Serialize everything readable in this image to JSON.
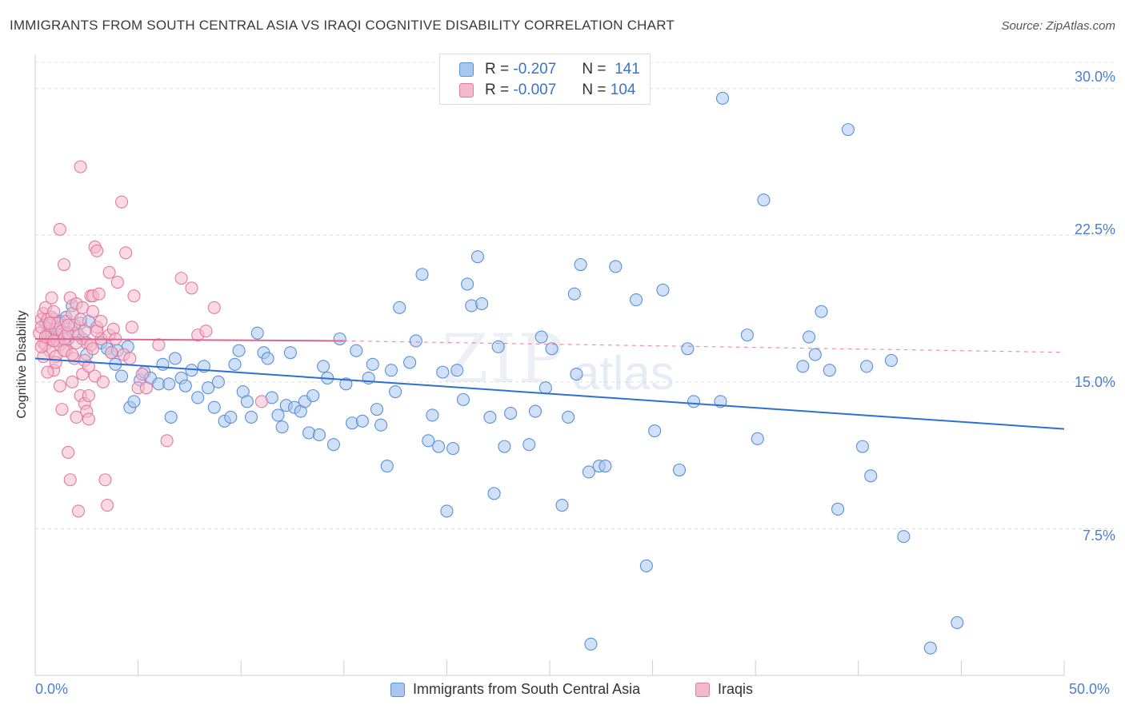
{
  "header": {
    "title": "IMMIGRANTS FROM SOUTH CENTRAL ASIA VS IRAQI COGNITIVE DISABILITY CORRELATION CHART",
    "source": "Source: ZipAtlas.com"
  },
  "legend": {
    "rows": [
      {
        "r_label": "R =",
        "r_value": "-0.207",
        "n_label": "N =",
        "n_value": "141"
      },
      {
        "r_label": "R =",
        "r_value": "-0.007",
        "n_label": "N =",
        "n_value": "104"
      }
    ]
  },
  "watermark": {
    "part1": "ZIP",
    "part2": "atlas"
  },
  "colors": {
    "blue_fill": "#a9c6f0",
    "blue_stroke": "#5b8fd8",
    "blue_line": "#2e6fd0",
    "pink_fill": "#f4b9cc",
    "pink_stroke": "#e37a9e",
    "pink_line": "#e0648c",
    "tick_text": "#4a7fd0"
  },
  "chart_data": {
    "type": "scatter",
    "title": "IMMIGRANTS FROM SOUTH CENTRAL ASIA VS IRAQI COGNITIVE DISABILITY CORRELATION CHART",
    "xlabel": "",
    "ylabel": "Cognitive Disability",
    "xlim": [
      0,
      50
    ],
    "ylim": [
      0,
      31.5
    ],
    "x_tick_labels": [
      "0.0%",
      "50.0%"
    ],
    "y_ticks": [
      7.5,
      15.0,
      22.5,
      30.0
    ],
    "y_tick_labels": [
      "7.5%",
      "15.0%",
      "22.5%",
      "30.0%"
    ],
    "grid": true,
    "legend_position": "top-center",
    "series": [
      {
        "name": "Immigrants from South Central Asia",
        "color": "#5b8fd8",
        "trend": {
          "x": [
            0,
            50
          ],
          "y": [
            16.2,
            12.6
          ]
        },
        "points": [
          [
            0.5,
            18.0
          ],
          [
            0.6,
            17.6
          ],
          [
            0.7,
            17.9
          ],
          [
            0.8,
            17.4
          ],
          [
            0.9,
            18.2
          ],
          [
            1.0,
            17.8
          ],
          [
            1.1,
            17.3
          ],
          [
            1.2,
            18.1
          ],
          [
            1.3,
            17.6
          ],
          [
            1.4,
            17.9
          ],
          [
            1.5,
            18.3
          ],
          [
            1.6,
            17.2
          ],
          [
            1.8,
            18.9
          ],
          [
            2.0,
            17.5
          ],
          [
            2.2,
            18.0
          ],
          [
            2.3,
            17.2
          ],
          [
            2.5,
            16.4
          ],
          [
            2.6,
            18.1
          ],
          [
            3.2,
            17.0
          ],
          [
            3.5,
            16.7
          ],
          [
            3.7,
            16.5
          ],
          [
            3.9,
            15.9
          ],
          [
            4.0,
            16.6
          ],
          [
            4.2,
            15.3
          ],
          [
            4.5,
            16.8
          ],
          [
            4.6,
            13.7
          ],
          [
            4.8,
            14.0
          ],
          [
            5.1,
            15.1
          ],
          [
            5.3,
            15.5
          ],
          [
            5.6,
            15.2
          ],
          [
            6.0,
            14.9
          ],
          [
            6.2,
            15.9
          ],
          [
            6.5,
            14.9
          ],
          [
            6.6,
            13.2
          ],
          [
            6.8,
            16.2
          ],
          [
            7.1,
            15.2
          ],
          [
            7.3,
            14.8
          ],
          [
            7.6,
            15.6
          ],
          [
            7.9,
            14.2
          ],
          [
            8.2,
            15.8
          ],
          [
            8.4,
            14.7
          ],
          [
            8.7,
            13.7
          ],
          [
            8.9,
            15.0
          ],
          [
            9.2,
            13.0
          ],
          [
            9.5,
            13.2
          ],
          [
            9.7,
            15.9
          ],
          [
            9.9,
            16.6
          ],
          [
            10.1,
            14.5
          ],
          [
            10.3,
            14.0
          ],
          [
            10.5,
            13.2
          ],
          [
            10.8,
            17.5
          ],
          [
            11.1,
            16.5
          ],
          [
            11.3,
            16.2
          ],
          [
            11.5,
            14.2
          ],
          [
            11.8,
            13.3
          ],
          [
            12.0,
            12.7
          ],
          [
            12.2,
            13.8
          ],
          [
            12.4,
            16.5
          ],
          [
            12.6,
            13.7
          ],
          [
            12.9,
            13.5
          ],
          [
            13.1,
            14.0
          ],
          [
            13.3,
            12.4
          ],
          [
            13.5,
            14.3
          ],
          [
            13.8,
            12.3
          ],
          [
            14.0,
            15.8
          ],
          [
            14.2,
            15.2
          ],
          [
            14.5,
            11.8
          ],
          [
            14.8,
            17.2
          ],
          [
            15.1,
            14.9
          ],
          [
            15.4,
            12.9
          ],
          [
            15.6,
            16.6
          ],
          [
            15.9,
            13.0
          ],
          [
            16.2,
            15.2
          ],
          [
            16.4,
            15.9
          ],
          [
            16.6,
            13.6
          ],
          [
            16.8,
            12.8
          ],
          [
            17.1,
            10.7
          ],
          [
            17.3,
            15.6
          ],
          [
            17.5,
            14.5
          ],
          [
            17.7,
            18.8
          ],
          [
            18.2,
            16.0
          ],
          [
            18.5,
            17.1
          ],
          [
            18.8,
            20.5
          ],
          [
            19.1,
            12.0
          ],
          [
            19.3,
            13.3
          ],
          [
            19.6,
            11.7
          ],
          [
            19.8,
            15.5
          ],
          [
            20.0,
            8.4
          ],
          [
            20.3,
            11.6
          ],
          [
            20.5,
            15.6
          ],
          [
            20.8,
            14.1
          ],
          [
            21.0,
            20.0
          ],
          [
            21.2,
            18.9
          ],
          [
            21.5,
            21.4
          ],
          [
            21.7,
            19.0
          ],
          [
            22.1,
            13.2
          ],
          [
            22.3,
            9.3
          ],
          [
            22.5,
            16.8
          ],
          [
            22.8,
            11.7
          ],
          [
            23.1,
            13.4
          ],
          [
            24.0,
            11.8
          ],
          [
            24.3,
            13.5
          ],
          [
            24.6,
            17.3
          ],
          [
            24.8,
            14.7
          ],
          [
            25.1,
            16.7
          ],
          [
            25.6,
            8.7
          ],
          [
            25.9,
            13.2
          ],
          [
            26.2,
            19.5
          ],
          [
            26.5,
            21.0
          ],
          [
            26.9,
            10.4
          ],
          [
            27.0,
            1.6
          ],
          [
            27.4,
            10.7
          ],
          [
            27.7,
            10.7
          ],
          [
            28.2,
            20.9
          ],
          [
            29.2,
            19.2
          ],
          [
            29.7,
            5.6
          ],
          [
            30.1,
            12.5
          ],
          [
            30.5,
            19.7
          ],
          [
            31.3,
            10.5
          ],
          [
            32.0,
            14.0
          ],
          [
            31.7,
            16.7
          ],
          [
            33.3,
            14.0
          ],
          [
            33.4,
            29.5
          ],
          [
            34.6,
            17.4
          ],
          [
            35.1,
            12.1
          ],
          [
            35.4,
            24.3
          ],
          [
            37.3,
            15.8
          ],
          [
            37.6,
            17.3
          ],
          [
            37.9,
            16.4
          ],
          [
            38.2,
            18.6
          ],
          [
            38.6,
            15.6
          ],
          [
            39.0,
            8.5
          ],
          [
            39.5,
            27.9
          ],
          [
            40.2,
            11.7
          ],
          [
            40.4,
            15.8
          ],
          [
            40.6,
            10.2
          ],
          [
            41.6,
            16.1
          ],
          [
            42.2,
            7.1
          ],
          [
            43.5,
            1.4
          ],
          [
            44.8,
            2.7
          ],
          [
            26.3,
            15.4
          ]
        ]
      },
      {
        "name": "Iraqis",
        "color": "#e37a9e",
        "trend": {
          "x": [
            0,
            15
          ],
          "y": [
            17.2,
            17.1
          ]
        },
        "points": [
          [
            0.2,
            17.5
          ],
          [
            0.3,
            18.2
          ],
          [
            0.3,
            17.8
          ],
          [
            0.4,
            18.5
          ],
          [
            0.4,
            17.0
          ],
          [
            0.5,
            18.8
          ],
          [
            0.5,
            16.9
          ],
          [
            0.6,
            18.2
          ],
          [
            0.6,
            17.4
          ],
          [
            0.7,
            17.9
          ],
          [
            0.7,
            16.6
          ],
          [
            0.8,
            18.3
          ],
          [
            0.8,
            17.2
          ],
          [
            0.9,
            18.6
          ],
          [
            0.9,
            15.6
          ],
          [
            1.0,
            17.7
          ],
          [
            1.0,
            16.3
          ],
          [
            1.1,
            18.0
          ],
          [
            1.1,
            17.1
          ],
          [
            1.2,
            22.8
          ],
          [
            1.2,
            16.9
          ],
          [
            1.3,
            17.6
          ],
          [
            1.3,
            13.6
          ],
          [
            1.4,
            21.0
          ],
          [
            1.4,
            17.2
          ],
          [
            1.5,
            18.1
          ],
          [
            1.5,
            16.6
          ],
          [
            1.6,
            11.4
          ],
          [
            1.6,
            17.5
          ],
          [
            1.7,
            10.0
          ],
          [
            1.7,
            19.3
          ],
          [
            1.8,
            18.5
          ],
          [
            1.8,
            15.0
          ],
          [
            1.9,
            16.2
          ],
          [
            1.9,
            17.9
          ],
          [
            2.0,
            13.2
          ],
          [
            2.0,
            19.0
          ],
          [
            2.1,
            8.4
          ],
          [
            2.1,
            17.4
          ],
          [
            2.2,
            26.0
          ],
          [
            2.2,
            14.3
          ],
          [
            2.3,
            15.4
          ],
          [
            2.3,
            18.8
          ],
          [
            2.4,
            13.9
          ],
          [
            2.4,
            17.6
          ],
          [
            2.5,
            13.5
          ],
          [
            2.5,
            17.0
          ],
          [
            2.6,
            14.3
          ],
          [
            2.6,
            13.1
          ],
          [
            2.7,
            19.4
          ],
          [
            2.7,
            16.9
          ],
          [
            2.8,
            18.6
          ],
          [
            2.8,
            19.4
          ],
          [
            2.9,
            21.9
          ],
          [
            2.9,
            15.3
          ],
          [
            3.0,
            21.7
          ],
          [
            3.0,
            17.8
          ],
          [
            3.1,
            19.5
          ],
          [
            3.2,
            17.2
          ],
          [
            3.3,
            15.0
          ],
          [
            3.4,
            10.0
          ],
          [
            3.5,
            8.7
          ],
          [
            3.6,
            20.6
          ],
          [
            3.6,
            17.4
          ],
          [
            3.7,
            16.5
          ],
          [
            3.8,
            17.7
          ],
          [
            3.9,
            17.2
          ],
          [
            4.0,
            20.1
          ],
          [
            4.2,
            24.2
          ],
          [
            4.3,
            16.4
          ],
          [
            4.4,
            21.6
          ],
          [
            4.6,
            16.2
          ],
          [
            4.7,
            17.8
          ],
          [
            4.8,
            19.4
          ],
          [
            5.0,
            14.7
          ],
          [
            5.2,
            15.4
          ],
          [
            5.4,
            14.7
          ],
          [
            6.0,
            16.9
          ],
          [
            6.4,
            12.0
          ],
          [
            7.1,
            20.3
          ],
          [
            7.6,
            19.8
          ],
          [
            7.9,
            17.4
          ],
          [
            8.3,
            17.6
          ],
          [
            8.7,
            18.8
          ],
          [
            11.0,
            14.0
          ],
          [
            0.4,
            16.3
          ],
          [
            0.6,
            15.5
          ],
          [
            0.8,
            19.3
          ],
          [
            1.0,
            16.0
          ],
          [
            1.2,
            14.8
          ],
          [
            1.4,
            16.6
          ],
          [
            1.6,
            17.9
          ],
          [
            1.8,
            16.4
          ],
          [
            2.0,
            17.0
          ],
          [
            2.2,
            18.2
          ],
          [
            2.4,
            16.1
          ],
          [
            2.6,
            15.8
          ],
          [
            2.8,
            16.7
          ],
          [
            3.0,
            17.6
          ],
          [
            3.2,
            18.1
          ],
          [
            0.3,
            16.8
          ],
          [
            0.5,
            17.3
          ],
          [
            0.7,
            18.0
          ],
          [
            0.9,
            17.1
          ]
        ]
      }
    ]
  },
  "bottom_legend": [
    {
      "label": "Immigrants from South Central Asia"
    },
    {
      "label": "Iraqis"
    }
  ]
}
